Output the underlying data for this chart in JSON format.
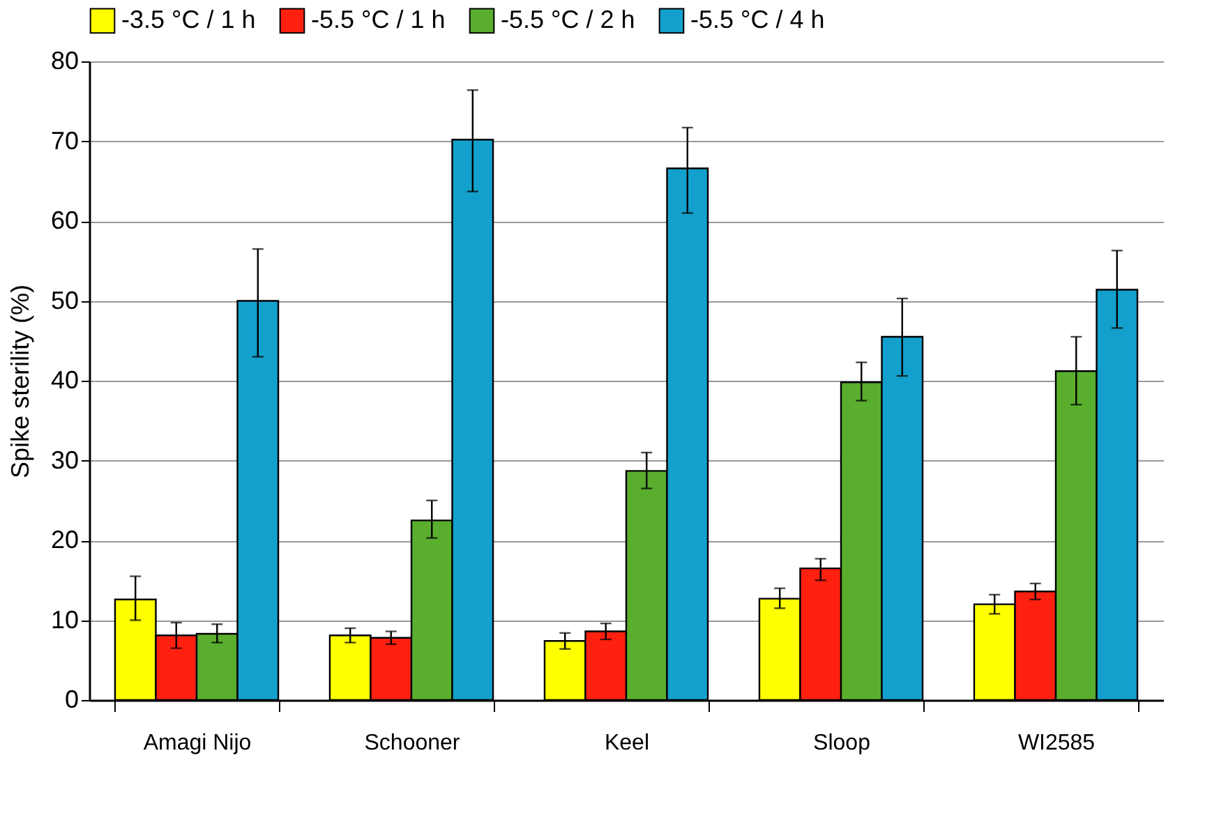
{
  "chart_data": {
    "type": "bar",
    "ylabel": "Spike sterility (%)",
    "categories": [
      "Amagi Nijo",
      "Schooner",
      "Keel",
      "Sloop",
      "WI2585"
    ],
    "series": [
      {
        "name": "-3.5 °C / 1 h",
        "color": "#ffff00",
        "values": [
          12.6,
          8.1,
          7.4,
          12.7,
          12.0
        ],
        "errors": [
          [
            10,
            15.5
          ],
          [
            7.2,
            9
          ],
          [
            6.4,
            8.4
          ],
          [
            11.5,
            14
          ],
          [
            10.8,
            13.2
          ]
        ]
      },
      {
        "name": "-5.5 °C / 1 h",
        "color": "#ff2010",
        "values": [
          8.1,
          7.8,
          8.6,
          16.5,
          13.6
        ],
        "errors": [
          [
            6.5,
            9.7
          ],
          [
            7,
            8.6
          ],
          [
            7.6,
            9.6
          ],
          [
            15,
            17.7
          ],
          [
            12.6,
            14.6
          ]
        ]
      },
      {
        "name": "-5.5 °C / 2 h",
        "color": "#5aae2e",
        "values": [
          8.3,
          22.5,
          28.7,
          39.8,
          41.2
        ],
        "errors": [
          [
            7.2,
            9.5
          ],
          [
            20.3,
            25
          ],
          [
            26.5,
            31
          ],
          [
            37.5,
            42.3
          ],
          [
            37,
            45.5
          ]
        ]
      },
      {
        "name": "-5.5 °C / 4 h",
        "color": "#14a0cc",
        "values": [
          50.0,
          70.2,
          66.6,
          45.5,
          51.4
        ],
        "errors": [
          [
            43,
            56.5
          ],
          [
            63.7,
            76.4
          ],
          [
            61,
            71.7
          ],
          [
            40.6,
            50.3
          ],
          [
            46.6,
            56.3
          ]
        ]
      }
    ],
    "ylim": [
      0,
      80
    ],
    "yticks": [
      0,
      10,
      20,
      30,
      40,
      50,
      60,
      70,
      80
    ],
    "grid": "y",
    "legend": "top"
  }
}
